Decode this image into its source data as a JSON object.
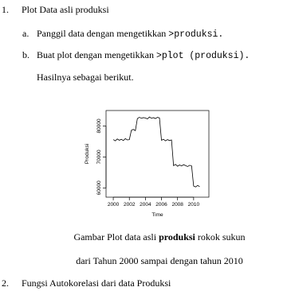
{
  "sections": [
    {
      "number": "1.",
      "title": "Plot Data asli produksi",
      "items": [
        {
          "label": "a.",
          "text": "Panggil data dengan mengetikkan",
          "code": ">produksi."
        },
        {
          "label": "b.",
          "text": "Buat plot dengan mengetikkan",
          "code": ">plot (produksi)."
        }
      ],
      "note": "Hasilnya sebagai berikut."
    },
    {
      "number": "2.",
      "title": "Fungsi Autokorelasi dari data Produksi"
    }
  ],
  "caption": {
    "before": "Gambar Plot data asli",
    "bold": "produksi",
    "after": "rokok sukun",
    "line2": "dari Tahun 2000 sampai dengan tahun 2010"
  },
  "chart_data": {
    "type": "line",
    "x_label": "Time",
    "y_label": "Produksi",
    "color": "#000000",
    "x": [
      2000,
      2000.25,
      2000.5,
      2000.75,
      2001,
      2001.25,
      2001.5,
      2001.75,
      2002,
      2002.25,
      2002.5,
      2002.75,
      2003,
      2003.25,
      2003.5,
      2003.75,
      2004,
      2004.25,
      2004.5,
      2004.75,
      2005,
      2005.25,
      2005.5,
      2005.75,
      2006,
      2006.25,
      2006.5,
      2006.75,
      2007,
      2007.25,
      2007.5,
      2007.75,
      2008,
      2008.25,
      2008.5,
      2008.75,
      2009,
      2009.25,
      2009.5,
      2009.75,
      2010,
      2010.25,
      2010.5,
      2010.75
    ],
    "values": [
      75600,
      75200,
      75800,
      75400,
      75700,
      75300,
      75900,
      75500,
      75600,
      78600,
      78900,
      78500,
      82400,
      82800,
      82500,
      82700,
      82600,
      82300,
      82900,
      82500,
      82700,
      82400,
      82800,
      82600,
      75400,
      75700,
      75200,
      75600,
      75300,
      75500,
      67200,
      67600,
      67000,
      67400,
      67100,
      67500,
      67200,
      66900,
      67300,
      67100,
      60600,
      60300,
      60800,
      60400
    ],
    "xlim": [
      1999.1,
      2011.9
    ],
    "ylim": [
      57000,
      85000
    ],
    "xticks": [
      2000,
      2002,
      2004,
      2006,
      2008,
      2010
    ],
    "yticks": [
      60000,
      70000,
      80000
    ]
  }
}
